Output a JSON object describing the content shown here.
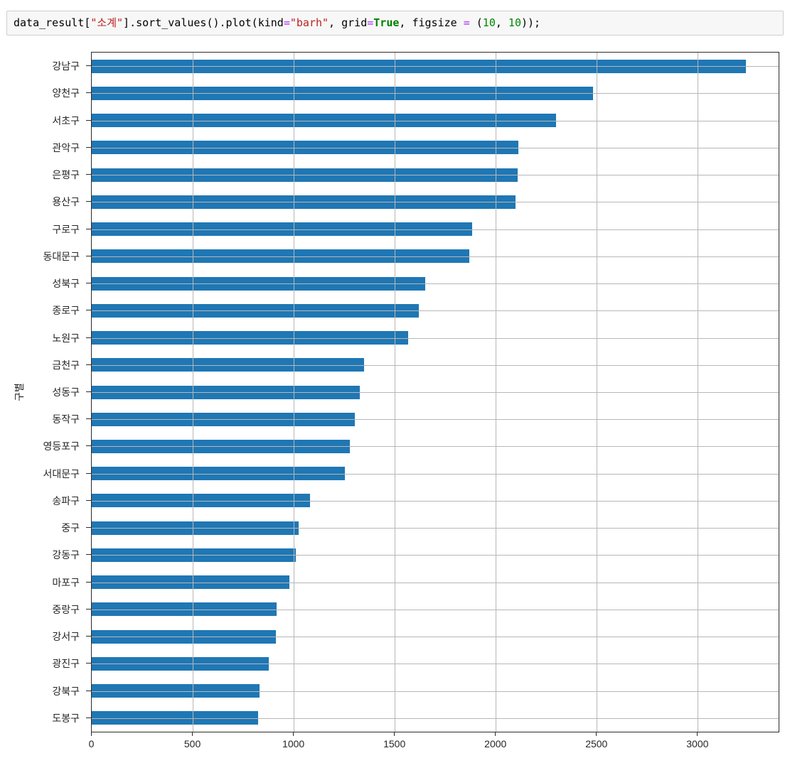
{
  "code_cell": {
    "language": "python",
    "tokens": [
      {
        "t": "data_result[",
        "c": "plain"
      },
      {
        "t": "\"소계\"",
        "c": "string"
      },
      {
        "t": "].sort_values().plot(kind",
        "c": "plain"
      },
      {
        "t": "=",
        "c": "operator"
      },
      {
        "t": "\"barh\"",
        "c": "string"
      },
      {
        "t": ", grid",
        "c": "plain"
      },
      {
        "t": "=",
        "c": "operator"
      },
      {
        "t": "True",
        "c": "keyword"
      },
      {
        "t": ", figsize ",
        "c": "plain"
      },
      {
        "t": "=",
        "c": "operator"
      },
      {
        "t": " (",
        "c": "plain"
      },
      {
        "t": "10",
        "c": "number"
      },
      {
        "t": ", ",
        "c": "plain"
      },
      {
        "t": "10",
        "c": "number"
      },
      {
        "t": "));",
        "c": "plain"
      }
    ]
  },
  "chart_data": {
    "type": "bar",
    "orientation": "horizontal",
    "order_note": "values sorted ascending bottom-to-top; listed here top-to-bottom as displayed",
    "categories": [
      "강남구",
      "양천구",
      "서초구",
      "관악구",
      "은평구",
      "용산구",
      "구로구",
      "동대문구",
      "성북구",
      "종로구",
      "노원구",
      "금천구",
      "성동구",
      "동작구",
      "영등포구",
      "서대문구",
      "송파구",
      "중구",
      "강동구",
      "마포구",
      "중랑구",
      "강서구",
      "광진구",
      "강북구",
      "도봉구"
    ],
    "values": [
      3238,
      2482,
      2297,
      2113,
      2108,
      2096,
      1884,
      1870,
      1651,
      1619,
      1566,
      1348,
      1327,
      1302,
      1277,
      1254,
      1081,
      1023,
      1010,
      980,
      916,
      911,
      876,
      831,
      823
    ],
    "title": "",
    "xlabel": "",
    "ylabel": "구별",
    "xlim": [
      0,
      3400
    ],
    "xticks": [
      0,
      500,
      1000,
      1500,
      2000,
      2500,
      3000
    ],
    "grid": true,
    "grid_on_top_of_bars": true,
    "legend": "none",
    "bar_color": "#1f77b4",
    "grid_color": "#b7b7b7",
    "spine_color": "#2b2b2b",
    "tick_label_color": "#262626"
  }
}
